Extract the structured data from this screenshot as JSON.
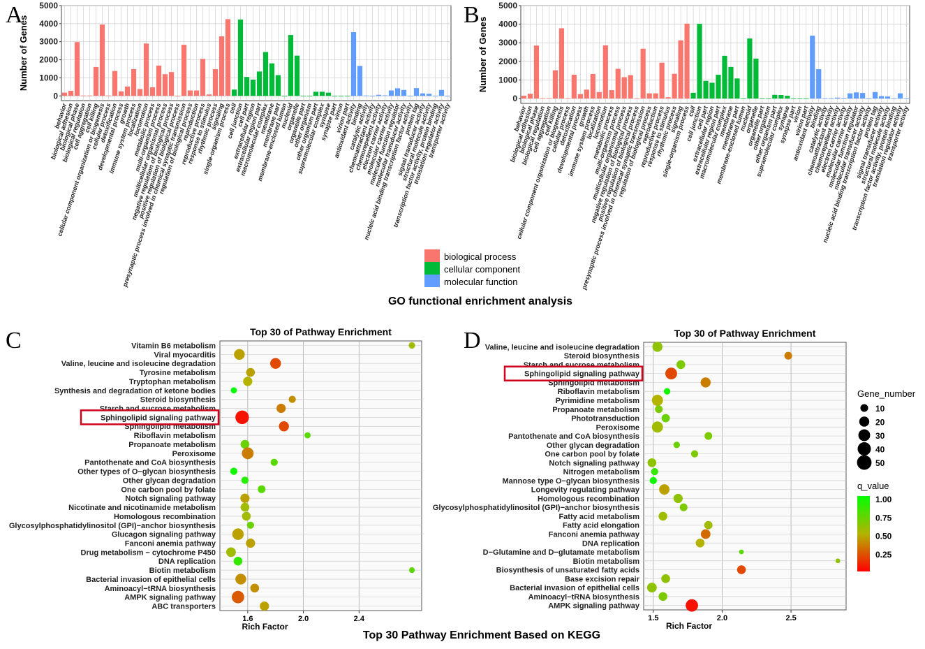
{
  "colors": {
    "bp": "#F8766D",
    "cc": "#00BA38",
    "mf": "#619CFF",
    "grid": "#c9c9c9",
    "panel": "#ffffff",
    "highlight": "#d0021b"
  },
  "panel_labels": [
    "A",
    "B",
    "C",
    "D"
  ],
  "go_caption": "GO functional enrichment analysis",
  "kegg_caption": "Top 30 Pathway Enrichment Based on KEGG",
  "legend": {
    "biological_process": "biological process",
    "cellular_component": "cellular component",
    "molecular_function": "molecular function"
  },
  "size_legend": {
    "title": "Gene_number",
    "values": [
      "10",
      "20",
      "30",
      "40",
      "50"
    ]
  },
  "color_legend": {
    "title": "q_value",
    "values": [
      "1.00",
      "0.75",
      "0.50",
      "0.25"
    ]
  },
  "chart_data": [
    {
      "id": "A",
      "type": "bar",
      "ylabel": "Number of Genes",
      "ylim": [
        0,
        5000
      ],
      "yticks": [
        0,
        1000,
        2000,
        3000,
        4000,
        5000
      ],
      "categories": [
        "behavior",
        "biological adhesion",
        "biological phase",
        "biological regulation",
        "cell aggregation",
        "cell killing",
        "cellular component organization or biogenesis",
        "cellular process",
        "detoxification",
        "developmental process",
        "growth",
        "immune system process",
        "localization",
        "locomotion",
        "metabolic process",
        "multi-organism process",
        "multicellular organismal process",
        "negative regulation of biological process",
        "positive regulation of biological process",
        "presynaptic process involved in chemical synaptic transmission",
        "regulation of biological process",
        "reproduction",
        "reproductive process",
        "response to stimulus",
        "rhythmic process",
        "signaling",
        "single-organism process",
        "cell",
        "cell junction",
        "cell part",
        "extracellular region",
        "extracellular region part",
        "macromolecular complex",
        "membrane",
        "membrane part",
        "membrane-enclosed lumen",
        "nucleoid",
        "organelle",
        "organelle part",
        "other organism",
        "other organism part",
        "supramolecular complex",
        "synapse",
        "synapse part",
        "virion",
        "virion part",
        "antioxidant activity",
        "binding",
        "catalytic activity",
        "chemoattractant activity",
        "chemorepellent activity",
        "electron carrier activity",
        "molecular carrier activity",
        "molecular function regulator",
        "molecular transducer activity",
        "nucleic acid binding transcription factor activity",
        "protein tag",
        "signal transducer activity",
        "structural molecule activity",
        "transcription factor activity, protein binding",
        "translation regulator activity",
        "transporter activity"
      ],
      "groups": [
        "bp",
        "bp",
        "bp",
        "bp",
        "bp",
        "bp",
        "bp",
        "bp",
        "bp",
        "bp",
        "bp",
        "bp",
        "bp",
        "bp",
        "bp",
        "bp",
        "bp",
        "bp",
        "bp",
        "bp",
        "bp",
        "bp",
        "bp",
        "bp",
        "bp",
        "bp",
        "bp",
        "cc",
        "cc",
        "cc",
        "cc",
        "cc",
        "cc",
        "cc",
        "cc",
        "cc",
        "cc",
        "cc",
        "cc",
        "cc",
        "cc",
        "cc",
        "cc",
        "cc",
        "cc",
        "cc",
        "mf",
        "mf",
        "mf",
        "mf",
        "mf",
        "mf",
        "mf",
        "mf",
        "mf",
        "mf",
        "mf",
        "mf",
        "mf",
        "mf",
        "mf",
        "mf"
      ],
      "values": [
        180,
        280,
        2980,
        20,
        20,
        1600,
        3950,
        20,
        1380,
        250,
        520,
        1480,
        380,
        2900,
        480,
        1680,
        1200,
        1320,
        10,
        2830,
        300,
        300,
        2050,
        80,
        1480,
        3300,
        4250,
        350,
        4230,
        1050,
        900,
        1350,
        2430,
        1800,
        1150,
        10,
        3370,
        2230,
        10,
        10,
        230,
        230,
        180,
        10,
        10,
        10,
        3530,
        1660,
        20,
        10,
        60,
        30,
        300,
        420,
        330,
        10,
        430,
        140,
        120,
        10,
        330,
        10
      ]
    },
    {
      "id": "B",
      "type": "bar",
      "ylabel": "Number of Genes",
      "ylim": [
        0,
        5000
      ],
      "yticks": [
        0,
        1000,
        2000,
        3000,
        4000,
        5000
      ],
      "categories": [
        "behavior",
        "biological adhesion",
        "biological phase",
        "biological regulation",
        "cell aggregation",
        "cell killing",
        "cellular component organization or biogenesis",
        "cellular process",
        "detoxification",
        "developmental process",
        "growth",
        "immune system process",
        "localization",
        "locomotion",
        "metabolic process",
        "multi-organism process",
        "multicellular organismal process",
        "negative regulation of biological process",
        "positive regulation of biological process",
        "presynaptic process involved in chemical synaptic transmission",
        "regulation of biological process",
        "reproduction",
        "reproductive process",
        "response to stimulus",
        "rhythmic process",
        "signaling",
        "single-organism process",
        "cell",
        "cell junction",
        "cell part",
        "extracellular region",
        "extracellular region part",
        "macromolecular complex",
        "membrane",
        "membrane part",
        "membrane-enclosed lumen",
        "nucleoid",
        "organelle",
        "organelle part",
        "other organism",
        "other organism part",
        "supramolecular complex",
        "synapse",
        "synapse part",
        "virion",
        "virion part",
        "antioxidant activity",
        "binding",
        "catalytic activity",
        "chemoattractant activity",
        "chemorepellent activity",
        "electron carrier activity",
        "molecular carrier activity",
        "molecular function regulator",
        "molecular transducer activity",
        "nucleic acid binding transcription factor activity",
        "protein tag",
        "signal transducer activity",
        "structural molecule activity",
        "transcription factor activity, protein binding",
        "translation regulator activity",
        "transporter activity"
      ],
      "groups": [
        "bp",
        "bp",
        "bp",
        "bp",
        "bp",
        "bp",
        "bp",
        "bp",
        "bp",
        "bp",
        "bp",
        "bp",
        "bp",
        "bp",
        "bp",
        "bp",
        "bp",
        "bp",
        "bp",
        "bp",
        "bp",
        "bp",
        "bp",
        "bp",
        "bp",
        "bp",
        "bp",
        "cc",
        "cc",
        "cc",
        "cc",
        "cc",
        "cc",
        "cc",
        "cc",
        "cc",
        "cc",
        "cc",
        "cc",
        "cc",
        "cc",
        "cc",
        "cc",
        "cc",
        "cc",
        "cc",
        "mf",
        "mf",
        "mf",
        "mf",
        "mf",
        "mf",
        "mf",
        "mf",
        "mf",
        "mf",
        "mf",
        "mf",
        "mf",
        "mf",
        "mf",
        "mf"
      ],
      "values": [
        150,
        260,
        2850,
        20,
        20,
        1520,
        3780,
        20,
        1280,
        240,
        480,
        1320,
        350,
        2860,
        450,
        1600,
        1150,
        1260,
        10,
        2680,
        280,
        280,
        1930,
        70,
        1330,
        3130,
        4030,
        310,
        4020,
        950,
        850,
        1280,
        2300,
        1700,
        1080,
        10,
        3230,
        2150,
        10,
        10,
        200,
        190,
        150,
        10,
        10,
        10,
        3380,
        1580,
        20,
        10,
        50,
        30,
        280,
        330,
        300,
        10,
        350,
        130,
        110,
        10,
        280,
        10
      ]
    },
    {
      "id": "C",
      "type": "scatter",
      "title": "Top 30 of Pathway Enrichment",
      "xlabel": "Rich Factor",
      "xlim": [
        1.4,
        2.85
      ],
      "xticks": [
        1.6,
        2.0,
        2.4
      ],
      "pathways": [
        "Vitamin B6 metabolism",
        "Viral myocarditis",
        "Valine, leucine and isoleucine degradation",
        "Tyrosine metabolism",
        "Tryptophan metabolism",
        "Synthesis and degradation of ketone bodies",
        "Steroid biosynthesis",
        "Starch and sucrose metabolism",
        "Sphingolipid signaling pathway",
        "Sphingolipid metabolism",
        "Riboflavin metabolism",
        "Propanoate metabolism",
        "Peroxisome",
        "Pantothenate and CoA biosynthesis",
        "Other types of O−glycan biosynthesis",
        "Other glycan degradation",
        "One carbon pool by folate",
        "Notch signaling pathway",
        "Nicotinate and nicotinamide metabolism",
        "Homologous recombination",
        "Glycosylphosphatidylinositol (GPI)−anchor biosynthesis",
        "Glucagon signaling pathway",
        "Fanconi anemia pathway",
        "Drug metabolism − cytochrome P450",
        "DNA replication",
        "Biotin metabolism",
        "Bacterial invasion of epithelial cells",
        "Aminoacyl−tRNA biosynthesis",
        "AMPK signaling pathway",
        "ABC transporters"
      ],
      "rich_factor": [
        2.78,
        1.54,
        1.8,
        1.62,
        1.6,
        1.5,
        1.92,
        1.84,
        1.56,
        1.86,
        2.03,
        1.58,
        1.6,
        1.79,
        1.5,
        1.58,
        1.7,
        1.58,
        1.58,
        1.59,
        1.62,
        1.53,
        1.62,
        1.48,
        1.53,
        2.78,
        1.55,
        1.65,
        1.53,
        1.72
      ],
      "gene_number": [
        6,
        24,
        24,
        14,
        16,
        5,
        8,
        16,
        42,
        20,
        5,
        14,
        30,
        8,
        8,
        8,
        10,
        16,
        14,
        14,
        8,
        28,
        16,
        18,
        14,
        4,
        24,
        14,
        34,
        16
      ],
      "q_value": [
        0.55,
        0.45,
        0.2,
        0.45,
        0.5,
        1.0,
        0.4,
        0.35,
        0.05,
        0.2,
        0.75,
        0.7,
        0.35,
        0.75,
        0.95,
        0.9,
        0.75,
        0.45,
        0.55,
        0.55,
        0.7,
        0.45,
        0.45,
        0.55,
        0.85,
        0.75,
        0.4,
        0.4,
        0.25,
        0.45
      ],
      "highlight": "Sphingolipid signaling pathway"
    },
    {
      "id": "D",
      "type": "scatter",
      "title": "Top 30 of Pathway Enrichment",
      "xlabel": "Rich Factor",
      "xlim": [
        1.43,
        2.9
      ],
      "xticks": [
        1.5,
        2.0,
        2.5
      ],
      "pathways": [
        "Valine, leucine and isoleucine degradation",
        "Steroid biosynthesis",
        "Starch and sucrose metabolism",
        "Sphingolipid signaling pathway",
        "Sphingolipid metabolism",
        "Riboflavin metabolism",
        "Pyrimidine metabolism",
        "Propanoate metabolism",
        "Phototransduction",
        "Peroxisome",
        "Pantothenate and CoA biosynthesis",
        "Other glycan degradation",
        "One carbon pool by folate",
        "Notch signaling pathway",
        "Nitrogen metabolism",
        "Mannose type O−glycan biosynthesis",
        "Longevity regulating pathway",
        "Homologous recombination",
        "Glycosylphosphatidylinositol (GPI)−anchor biosynthesis",
        "Fatty acid metabolism",
        "Fatty acid elongation",
        "Fanconi anemia pathway",
        "DNA replication",
        "D−Glutamine and D−glutamate metabolism",
        "Biotin metabolism",
        "Biosynthesis of unsaturated fatty acids",
        "Base excision repair",
        "Bacterial invasion of epithelial cells",
        "Aminoacyl−tRNA biosynthesis",
        "AMPK signaling pathway"
      ],
      "rich_factor": [
        1.53,
        2.48,
        1.7,
        1.63,
        1.88,
        1.6,
        1.53,
        1.54,
        1.59,
        1.53,
        1.9,
        1.67,
        1.8,
        1.49,
        1.51,
        1.5,
        1.58,
        1.68,
        1.72,
        1.57,
        1.9,
        1.88,
        1.84,
        2.14,
        2.84,
        2.14,
        1.59,
        1.49,
        1.57,
        1.78
      ],
      "gene_number": [
        20,
        10,
        14,
        30,
        20,
        6,
        26,
        10,
        12,
        26,
        10,
        6,
        8,
        14,
        8,
        8,
        22,
        16,
        10,
        14,
        12,
        18,
        14,
        2,
        2,
        14,
        14,
        18,
        14,
        34
      ],
      "q_value": [
        0.6,
        0.35,
        0.65,
        0.2,
        0.35,
        0.95,
        0.5,
        0.65,
        0.7,
        0.55,
        0.65,
        0.7,
        0.65,
        0.6,
        0.85,
        0.95,
        0.45,
        0.6,
        0.65,
        0.55,
        0.55,
        0.3,
        0.5,
        0.75,
        0.6,
        0.2,
        0.6,
        0.6,
        0.65,
        0.05
      ],
      "highlight": "Sphingolipid signaling pathway"
    }
  ]
}
